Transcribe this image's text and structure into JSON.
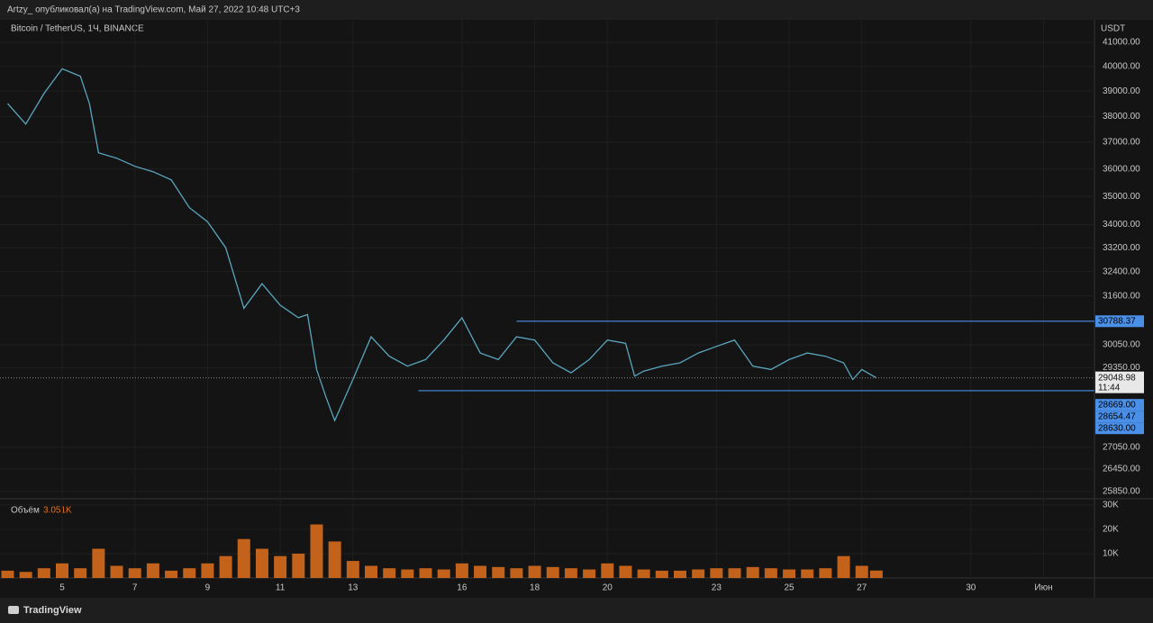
{
  "header": {
    "text": "Artzy_ опубликовал(а) на TradingView.com, Май 27, 2022 10:48 UTC+3"
  },
  "footer": {
    "brand": "TradingView"
  },
  "chart_data": [
    {
      "type": "line",
      "title": "Bitcoin / TetherUS, 1Ч, BINANCE",
      "unit": "USDT",
      "color": "#5aa6bf",
      "x": [
        3.5,
        4,
        4.5,
        5,
        5.5,
        5.75,
        6,
        6.5,
        7,
        7.5,
        8,
        8.5,
        9,
        9.5,
        10,
        10.5,
        11,
        11.5,
        11.75,
        12,
        12.25,
        12.5,
        13,
        13.5,
        14,
        14.5,
        15,
        15.5,
        16,
        16.5,
        17,
        17.5,
        18,
        18.5,
        19,
        19.5,
        20,
        20.5,
        20.75,
        21,
        21.5,
        22,
        22.5,
        23,
        23.5,
        24,
        24.5,
        25,
        25.5,
        26,
        26.5,
        26.75,
        27,
        27.4
      ],
      "values": [
        38500,
        37700,
        38900,
        39900,
        39600,
        38500,
        36600,
        36400,
        36100,
        35900,
        35600,
        34600,
        34100,
        33200,
        31200,
        32000,
        31300,
        30900,
        31000,
        29300,
        28500,
        27800,
        29000,
        30300,
        29700,
        29400,
        29600,
        30200,
        30900,
        29800,
        29600,
        30300,
        30200,
        29500,
        29200,
        29600,
        30200,
        30100,
        29100,
        29250,
        29400,
        29500,
        29800,
        30000,
        30200,
        29400,
        29300,
        29600,
        29800,
        29700,
        29500,
        29000,
        29300,
        29048.98
      ],
      "xlim": [
        3.29,
        33.4
      ],
      "ylim": [
        25680,
        41960
      ],
      "log": true,
      "grid": true,
      "xticks": [
        5,
        7,
        9,
        11,
        13,
        16,
        18,
        20,
        23,
        25,
        27,
        30,
        {
          "value": 32,
          "label": "Июн"
        }
      ],
      "yticks": [
        {
          "value": 41000,
          "label": "41000.00"
        },
        {
          "value": 40000,
          "label": "40000.00"
        },
        {
          "value": 39000,
          "label": "39000.00"
        },
        {
          "value": 38000,
          "label": "38000.00"
        },
        {
          "value": 37000,
          "label": "37000.00"
        },
        {
          "value": 36000,
          "label": "36000.00"
        },
        {
          "value": 35000,
          "label": "35000.00"
        },
        {
          "value": 34000,
          "label": "34000.00"
        },
        {
          "value": 33200,
          "label": "33200.00"
        },
        {
          "value": 32400,
          "label": "32400.00"
        },
        {
          "value": 31600,
          "label": "31600.00"
        },
        {
          "value": 30050,
          "label": "30050.00"
        },
        {
          "value": 29350,
          "label": "29350.00"
        },
        {
          "value": 27050,
          "label": "27050.00"
        },
        {
          "value": 26450,
          "label": "26450.00"
        },
        {
          "value": 25850,
          "label": "25850.00"
        }
      ],
      "levels": [
        {
          "value": 30788.37,
          "label": "30788.37",
          "from": 17.5,
          "color": "#4a8fe8"
        },
        {
          "value": 28669,
          "label": "28669.00",
          "from": 14.8,
          "color": "#4a8fe8"
        }
      ],
      "current": {
        "value": 29048.98,
        "label": "29048.98",
        "countdown": "11:44"
      },
      "tags": [
        {
          "value": 28654.47,
          "label": "28654.47",
          "color": "#4a8fe8"
        },
        {
          "value": 28630,
          "label": "28630.00",
          "color": "#4a8fe8"
        }
      ]
    },
    {
      "type": "bar",
      "title": "Объём",
      "color": "#e0701c",
      "x": [
        3.5,
        4,
        4.5,
        5,
        5.5,
        6,
        6.5,
        7,
        7.5,
        8,
        8.5,
        9,
        9.5,
        10,
        10.5,
        11,
        11.5,
        12,
        12.5,
        13,
        13.5,
        14,
        14.5,
        15,
        15.5,
        16,
        16.5,
        17,
        17.5,
        18,
        18.5,
        19,
        19.5,
        20,
        20.5,
        21,
        21.5,
        22,
        22.5,
        23,
        23.5,
        24,
        24.5,
        25,
        25.5,
        26,
        26.5,
        27,
        27.4
      ],
      "values": [
        3000,
        2500,
        4000,
        6000,
        4000,
        12000,
        5000,
        4000,
        6000,
        3000,
        4000,
        6000,
        9000,
        16000,
        12000,
        9000,
        10000,
        22000,
        15000,
        7000,
        5000,
        4000,
        3500,
        4000,
        3500,
        6000,
        5000,
        4500,
        4000,
        5000,
        4500,
        4000,
        3500,
        6000,
        5000,
        3500,
        3000,
        3000,
        3500,
        4000,
        4000,
        4500,
        4000,
        3500,
        3500,
        4000,
        9000,
        5000,
        3051
      ],
      "ylim": [
        0,
        31800
      ],
      "yticks": [
        {
          "value": 10000,
          "label": "10K"
        },
        {
          "value": 20000,
          "label": "20K"
        },
        {
          "value": 30000,
          "label": "30K"
        }
      ],
      "current": {
        "value": 3051,
        "label": "3.051K"
      }
    }
  ]
}
